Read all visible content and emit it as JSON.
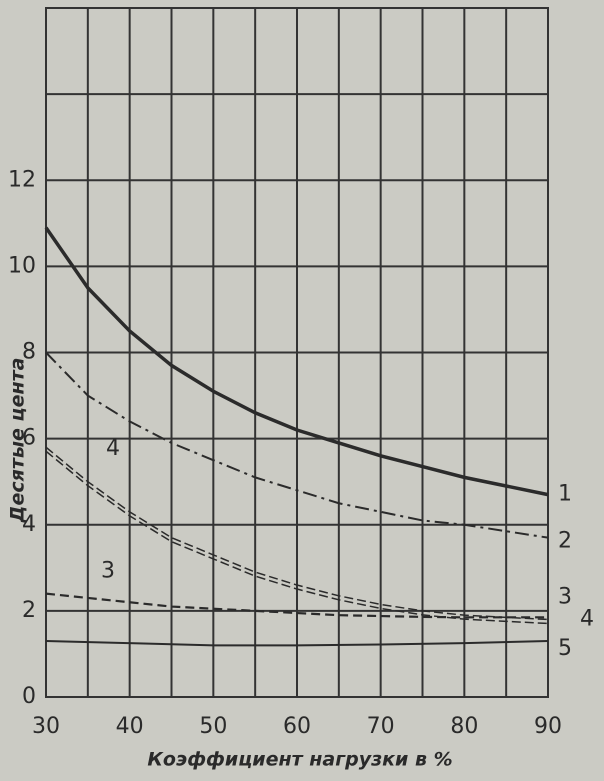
{
  "chart_data": {
    "type": "line",
    "xlabel": "Коэффициент нагрузки в %",
    "ylabel": "Десятые цента",
    "xlim": [
      30,
      90
    ],
    "xticks": [
      30,
      40,
      50,
      60,
      70,
      80,
      90
    ],
    "ylim": [
      0,
      16
    ],
    "yticks": [
      0,
      2,
      4,
      6,
      8,
      10,
      12
    ],
    "grid": true,
    "series": [
      {
        "name": "1",
        "color": "#2b2b2b",
        "linestyle": "solid-thick",
        "x": [
          30,
          35,
          40,
          45,
          50,
          55,
          60,
          65,
          70,
          75,
          80,
          85,
          90
        ],
        "values": [
          10.9,
          9.5,
          8.5,
          7.7,
          7.1,
          6.6,
          6.2,
          5.9,
          5.6,
          5.35,
          5.1,
          4.9,
          4.7
        ]
      },
      {
        "name": "2",
        "color": "#2b2b2b",
        "linestyle": "dashdot",
        "x": [
          30,
          35,
          40,
          45,
          50,
          55,
          60,
          65,
          70,
          75,
          80,
          85,
          90
        ],
        "values": [
          8.0,
          7.0,
          6.4,
          5.9,
          5.5,
          5.1,
          4.8,
          4.5,
          4.3,
          4.1,
          4.0,
          3.85,
          3.7
        ]
      },
      {
        "name": "3",
        "color": "#2b2b2b",
        "linestyle": "dashed",
        "x": [
          30,
          35,
          40,
          45,
          50,
          55,
          60,
          65,
          70,
          75,
          80,
          85,
          90
        ],
        "values": [
          2.4,
          2.3,
          2.2,
          2.1,
          2.05,
          2.0,
          1.95,
          1.9,
          1.88,
          1.86,
          1.85,
          1.85,
          1.85
        ]
      },
      {
        "name": "4",
        "color": "#2b2b2b",
        "linestyle": "double-dashed",
        "x": [
          30,
          35,
          40,
          45,
          50,
          55,
          60,
          65,
          70,
          75,
          80,
          85,
          90
        ],
        "values": [
          5.8,
          5.0,
          4.3,
          3.7,
          3.3,
          2.9,
          2.6,
          2.35,
          2.15,
          2.0,
          1.9,
          1.85,
          1.8
        ]
      },
      {
        "name": "5",
        "color": "#2b2b2b",
        "linestyle": "solid",
        "x": [
          30,
          40,
          50,
          60,
          70,
          80,
          90
        ],
        "values": [
          1.3,
          1.25,
          1.2,
          1.2,
          1.22,
          1.25,
          1.3
        ]
      }
    ]
  }
}
